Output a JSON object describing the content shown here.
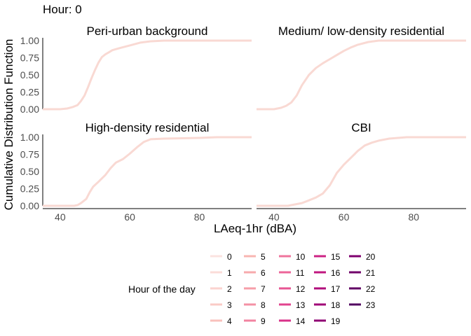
{
  "chart_data": {
    "type": "line",
    "title": "Hour: 0",
    "xlabel": "LAeq-1hr (dBA)",
    "ylabel": "Cumulative Distribution Function",
    "xlim": [
      35,
      95
    ],
    "ylim": [
      0,
      1
    ],
    "x_ticks": [
      40,
      60,
      80
    ],
    "y_ticks": [
      0,
      0.25,
      0.5,
      0.75,
      1
    ],
    "x_tick_labels": [
      "40",
      "60",
      "80"
    ],
    "y_tick_labels": [
      "0.00",
      "0.25",
      "0.50",
      "0.75",
      "1.00"
    ],
    "grid": false,
    "line_color": "#f9d9d3",
    "legend": {
      "title": "Hour of the day",
      "placement": "bottom",
      "entries": [
        {
          "label": "0",
          "color": "#fbe3e0"
        },
        {
          "label": "1",
          "color": "#fbdcd8"
        },
        {
          "label": "2",
          "color": "#fbd3cf"
        },
        {
          "label": "3",
          "color": "#facbc6"
        },
        {
          "label": "4",
          "color": "#f9c1bc"
        },
        {
          "label": "5",
          "color": "#f8b6b2"
        },
        {
          "label": "6",
          "color": "#f7aaac"
        },
        {
          "label": "7",
          "color": "#f69ea8"
        },
        {
          "label": "8",
          "color": "#f491a4"
        },
        {
          "label": "9",
          "color": "#f283a0"
        },
        {
          "label": "10",
          "color": "#ef749c"
        },
        {
          "label": "11",
          "color": "#ec6598"
        },
        {
          "label": "12",
          "color": "#e75593"
        },
        {
          "label": "13",
          "color": "#e1438e"
        },
        {
          "label": "14",
          "color": "#d93289"
        },
        {
          "label": "15",
          "color": "#cd2384"
        },
        {
          "label": "16",
          "color": "#c0177f"
        },
        {
          "label": "17",
          "color": "#b00d7b"
        },
        {
          "label": "18",
          "color": "#a00677"
        },
        {
          "label": "19",
          "color": "#8f0273"
        },
        {
          "label": "20",
          "color": "#7f016f"
        },
        {
          "label": "21",
          "color": "#70016a"
        },
        {
          "label": "22",
          "color": "#610165"
        },
        {
          "label": "23",
          "color": "#510160"
        }
      ]
    },
    "panels": [
      {
        "title": "Peri-urban background",
        "points": [
          [
            35,
            0
          ],
          [
            40,
            0
          ],
          [
            42,
            0.01
          ],
          [
            43.5,
            0.03
          ],
          [
            45,
            0.06
          ],
          [
            46,
            0.12
          ],
          [
            47,
            0.2
          ],
          [
            48,
            0.32
          ],
          [
            49,
            0.45
          ],
          [
            50,
            0.57
          ],
          [
            51,
            0.68
          ],
          [
            52,
            0.76
          ],
          [
            53,
            0.8
          ],
          [
            54,
            0.83
          ],
          [
            55,
            0.86
          ],
          [
            57,
            0.89
          ],
          [
            60,
            0.93
          ],
          [
            63,
            0.97
          ],
          [
            66,
            0.99
          ],
          [
            70,
            1
          ],
          [
            95,
            1
          ]
        ]
      },
      {
        "title": "Medium/ low-density residential",
        "points": [
          [
            35,
            0
          ],
          [
            40,
            0
          ],
          [
            42,
            0.02
          ],
          [
            43.5,
            0.05
          ],
          [
            45,
            0.1
          ],
          [
            46.5,
            0.2
          ],
          [
            48,
            0.35
          ],
          [
            50,
            0.5
          ],
          [
            52,
            0.6
          ],
          [
            54,
            0.67
          ],
          [
            56,
            0.73
          ],
          [
            58,
            0.79
          ],
          [
            60,
            0.85
          ],
          [
            62,
            0.9
          ],
          [
            64,
            0.94
          ],
          [
            67,
            0.98
          ],
          [
            70,
            1
          ],
          [
            95,
            1
          ]
        ]
      },
      {
        "title": "High-density residential",
        "points": [
          [
            35,
            0
          ],
          [
            44,
            0
          ],
          [
            45,
            0.01
          ],
          [
            46,
            0.04
          ],
          [
            47.5,
            0.1
          ],
          [
            48.5,
            0.2
          ],
          [
            49.5,
            0.28
          ],
          [
            51,
            0.35
          ],
          [
            53,
            0.45
          ],
          [
            54.5,
            0.55
          ],
          [
            56,
            0.63
          ],
          [
            58,
            0.68
          ],
          [
            60,
            0.76
          ],
          [
            62,
            0.85
          ],
          [
            64,
            0.93
          ],
          [
            66,
            0.97
          ],
          [
            70,
            0.98
          ],
          [
            80,
            0.99
          ],
          [
            85,
            1
          ],
          [
            95,
            1
          ]
        ]
      },
      {
        "title": "CBI",
        "points": [
          [
            35,
            0
          ],
          [
            44,
            0
          ],
          [
            45,
            0.01
          ],
          [
            48,
            0.04
          ],
          [
            50,
            0.08
          ],
          [
            52,
            0.12
          ],
          [
            54,
            0.18
          ],
          [
            56,
            0.3
          ],
          [
            58,
            0.48
          ],
          [
            60,
            0.6
          ],
          [
            62,
            0.7
          ],
          [
            64,
            0.8
          ],
          [
            66,
            0.88
          ],
          [
            68,
            0.92
          ],
          [
            70,
            0.95
          ],
          [
            73,
            0.98
          ],
          [
            78,
            1
          ],
          [
            95,
            1
          ]
        ]
      }
    ]
  }
}
